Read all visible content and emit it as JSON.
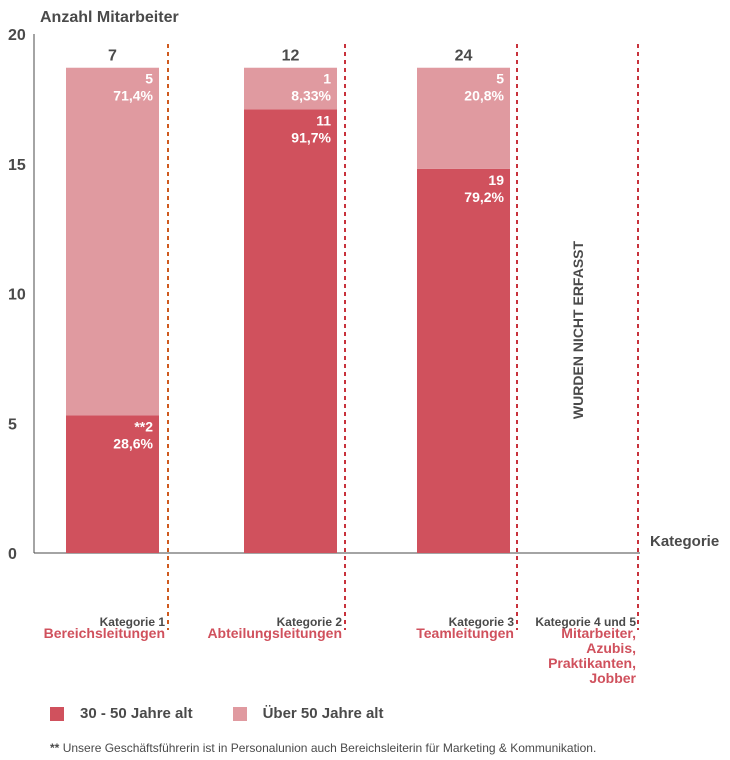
{
  "chart_data": {
    "type": "bar",
    "stacked": true,
    "ylabel": "Anzahl Mitarbeiter",
    "xlabel": "Kategorie",
    "ylim": [
      0,
      20
    ],
    "yticks": [
      "0",
      "5",
      "10",
      "15",
      "20"
    ],
    "categories": [
      {
        "small": "Kategorie 1",
        "name": [
          "Bereichsleitungen"
        ],
        "total": "7"
      },
      {
        "small": "Kategorie 2",
        "name": [
          "Abteilungsleitungen"
        ],
        "total": "12"
      },
      {
        "small": "Kategorie 3",
        "name": [
          "Teamleitungen"
        ],
        "total": "24"
      },
      {
        "small": "Kategorie 4 und 5",
        "name": [
          "Mitarbeiter,",
          "Azubis,",
          "Praktikanten,",
          "Jobber"
        ],
        "total": ""
      }
    ],
    "series": [
      {
        "name": "30 - 50 Jahre alt",
        "color": "#d0515d",
        "values": [
          5.3,
          17.1,
          14.8,
          null
        ],
        "labels": [
          [
            "**2",
            "28,6%"
          ],
          [
            "11",
            "91,7%"
          ],
          [
            "19",
            "79,2%"
          ],
          null
        ]
      },
      {
        "name": "Über 50 Jahre alt",
        "color": "#e09aa0",
        "values": [
          13.4,
          1.6,
          3.9,
          null
        ],
        "labels": [
          [
            "5",
            "71,4%"
          ],
          [
            "1",
            "8,33%"
          ],
          [
            "5",
            "20,8%"
          ],
          null
        ]
      }
    ],
    "annotation": "WURDEN NICHT ERFASST"
  },
  "footnote": {
    "marker": "**",
    "text": "Unsere Geschäftsführerin ist in Personalunion auch Bereichsleiterin für Marketing & Kommunikation."
  },
  "colors": {
    "dashed_line": "#c8323c",
    "dashed_line_first": "#cf5a1e",
    "axis": "#4a4a4a"
  }
}
